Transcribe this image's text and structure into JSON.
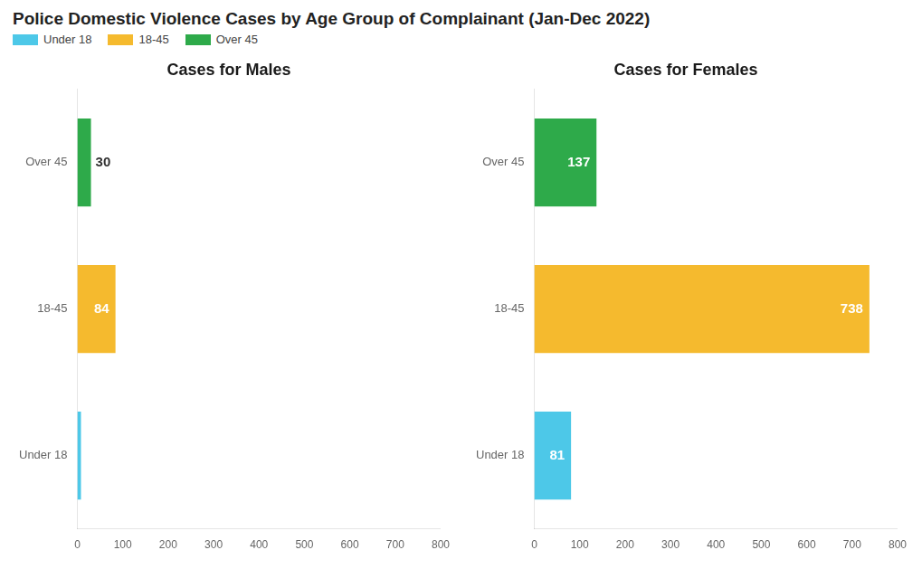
{
  "title": "Police Domestic Violence Cases by Age Group of Complainant (Jan-Dec 2022)",
  "legend": "top-left",
  "chart_data": [
    {
      "type": "bar",
      "orientation": "horizontal",
      "title": "Cases for Males",
      "categories": [
        "Over 45",
        "18-45",
        "Under 18"
      ],
      "values": [
        30,
        84,
        8
      ],
      "value_labels": [
        "30",
        "84",
        null
      ],
      "colors": [
        "#2EAA4A",
        "#F5BA2E",
        "#4DC8E8"
      ],
      "xlim": [
        0,
        800
      ],
      "xticks": [
        0,
        100,
        200,
        300,
        400,
        500,
        600,
        700,
        800
      ],
      "grid": false,
      "data_labels": true
    },
    {
      "type": "bar",
      "orientation": "horizontal",
      "title": "Cases for Females",
      "categories": [
        "Over 45",
        "18-45",
        "Under 18"
      ],
      "values": [
        137,
        738,
        81
      ],
      "value_labels": [
        "137",
        "738",
        "81"
      ],
      "colors": [
        "#2EAA4A",
        "#F5BA2E",
        "#4DC8E8"
      ],
      "xlim": [
        0,
        800
      ],
      "xticks": [
        0,
        100,
        200,
        300,
        400,
        500,
        600,
        700,
        800
      ],
      "grid": false,
      "data_labels": true
    }
  ]
}
